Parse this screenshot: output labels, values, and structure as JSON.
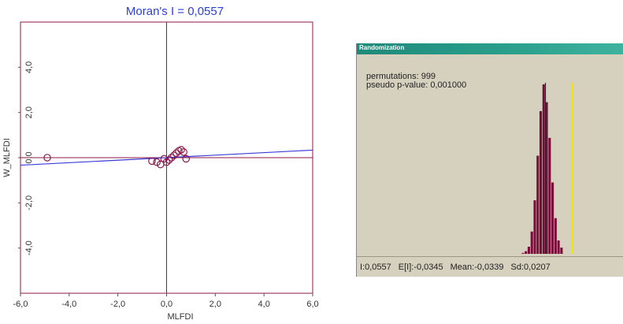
{
  "scatter": {
    "title": "Moran's I = 0,0557",
    "xlabel": "MLFDI",
    "ylabel": "W_MLFDI"
  },
  "randomization": {
    "window_title": "Randomization",
    "permutations_text": "permutations: 999",
    "pvalue_text": "pseudo p-value: 0,001000",
    "stats": {
      "i_value": "I:0,0557",
      "expected": "E[I]:-0,0345",
      "mean": "Mean:-0,0339",
      "sd": "Sd:0,0207"
    }
  },
  "chart_data": [
    {
      "type": "scatter",
      "title": "Moran's I = 0,0557",
      "xlabel": "MLFDI",
      "ylabel": "W_MLFDI",
      "xlim": [
        -6.0,
        6.0
      ],
      "ylim": [
        -6.0,
        6.0
      ],
      "x_ticks": [
        -6.0,
        -4.0,
        -2.0,
        0.0,
        2.0,
        4.0,
        6.0
      ],
      "x_tick_labels": [
        "-6,0",
        "-4,0",
        "-2,0",
        "0,0",
        "2,0",
        "4,0",
        "6,0"
      ],
      "y_ticks": [
        -4.0,
        -2.0,
        0.0,
        2.0,
        4.0
      ],
      "y_tick_labels": [
        "-4,0",
        "-2,0",
        "0,0",
        "2,0",
        "4,0"
      ],
      "grid": false,
      "points": [
        {
          "x": -4.9,
          "y": 0.0
        },
        {
          "x": -0.6,
          "y": -0.15
        },
        {
          "x": -0.4,
          "y": -0.2
        },
        {
          "x": -0.25,
          "y": -0.3
        },
        {
          "x": -0.1,
          "y": -0.05
        },
        {
          "x": 0.0,
          "y": -0.2
        },
        {
          "x": 0.1,
          "y": -0.1
        },
        {
          "x": 0.2,
          "y": 0.0
        },
        {
          "x": 0.3,
          "y": 0.1
        },
        {
          "x": 0.4,
          "y": 0.2
        },
        {
          "x": 0.5,
          "y": 0.3
        },
        {
          "x": 0.6,
          "y": 0.35
        },
        {
          "x": 0.7,
          "y": 0.25
        },
        {
          "x": 0.8,
          "y": -0.05
        }
      ],
      "regression_slope": 0.0557,
      "colors": {
        "axes": "#8b1a4a",
        "points": "#8b1a4a",
        "regression": "#3b3bd9",
        "title": "#2b3fd6"
      }
    },
    {
      "type": "bar",
      "title": "Randomization",
      "annotations": [
        "permutations: 999",
        "pseudo p-value: 0,001000"
      ],
      "xlim": [
        -0.67,
        0.23
      ],
      "histogram": {
        "bin_centers": [
          -0.11,
          -0.1,
          -0.09,
          -0.08,
          -0.07,
          -0.06,
          -0.05,
          -0.04,
          -0.03,
          -0.02,
          -0.01,
          0.0,
          0.01,
          0.02
        ],
        "counts": [
          1,
          3,
          8,
          25,
          60,
          110,
          160,
          190,
          170,
          130,
          80,
          40,
          15,
          7
        ]
      },
      "reference_lines": {
        "mean": -0.0339,
        "expected": -0.0345,
        "observed_I": 0.0557
      },
      "stats": {
        "I": 0.0557,
        "E_I": -0.0345,
        "mean": -0.0339,
        "sd": 0.0207
      },
      "colors": {
        "bars": "#7a0c3a",
        "background": "#d6d0bf",
        "observed": "#f2e300",
        "mean_line": "#222222",
        "expected_line": "#666666"
      }
    }
  ]
}
